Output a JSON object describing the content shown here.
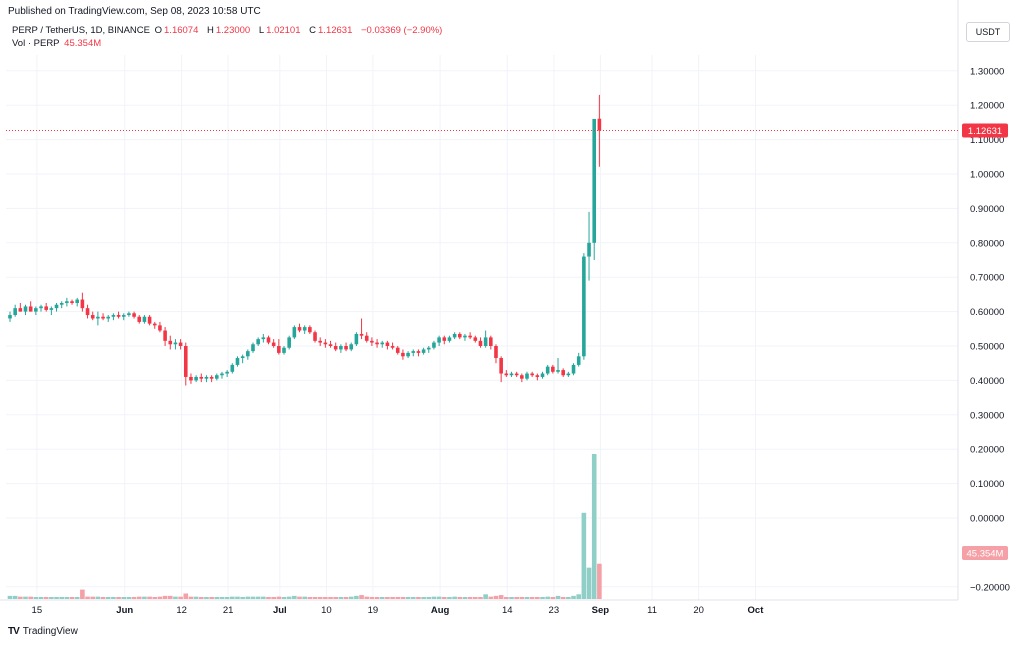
{
  "header": {
    "published": "Published on TradingView.com, Sep 08, 2023 10:58 UTC"
  },
  "legend": {
    "symbol": "PERP / TetherUS, 1D, BINANCE",
    "open_label": "O",
    "open": "1.16074",
    "high_label": "H",
    "high": "1.23000",
    "low_label": "L",
    "low": "1.02101",
    "close_label": "C",
    "close": "1.12631",
    "change": "−0.03369 (−2.90%)",
    "vol_label": "Vol · PERP",
    "vol_value": "45.354M"
  },
  "currency_button": "USDT",
  "footer": {
    "brand": "TradingView",
    "logo": "TV"
  },
  "colors": {
    "up": "#26a69a",
    "down": "#f23645",
    "vol_up": "#8fcfc7",
    "vol_down": "#f4a0a6",
    "grid": "#f0f3fa",
    "axis_text": "#131722",
    "price_line": "#f23645"
  },
  "chart_data": {
    "type": "candlestick",
    "y_ticks": [
      "1.30000",
      "1.20000",
      "1.10000",
      "1.00000",
      "0.90000",
      "0.80000",
      "0.70000",
      "0.60000",
      "0.50000",
      "0.40000",
      "0.30000",
      "0.20000",
      "0.10000",
      "0.00000",
      "−0.20000"
    ],
    "y_tick_values": [
      1.3,
      1.2,
      1.1,
      1.0,
      0.9,
      0.8,
      0.7,
      0.6,
      0.5,
      0.4,
      0.3,
      0.2,
      0.1,
      0.0,
      -0.2
    ],
    "x_ticks": [
      "15",
      "Jun",
      "12",
      "21",
      "Jul",
      "10",
      "19",
      "Aug",
      "14",
      "23",
      "Sep",
      "11",
      "20",
      "Oct"
    ],
    "x_tick_dates": [
      "2023-05-15",
      "2023-06-01",
      "2023-06-12",
      "2023-06-21",
      "2023-07-01",
      "2023-07-10",
      "2023-07-19",
      "2023-08-01",
      "2023-08-14",
      "2023-08-23",
      "2023-09-01",
      "2023-09-11",
      "2023-09-20",
      "2023-10-01"
    ],
    "start_date": "2023-05-10",
    "last_price_label": "1.12631",
    "last_price": 1.12631,
    "last_volume_label": "45.354M",
    "volume_unit_top": 0.185,
    "candles": [
      [
        0.58,
        0.6,
        0.57,
        0.59,
        0.004
      ],
      [
        0.59,
        0.62,
        0.585,
        0.61,
        0.004
      ],
      [
        0.61,
        0.625,
        0.6,
        0.6,
        0.003
      ],
      [
        0.6,
        0.62,
        0.59,
        0.615,
        0.003
      ],
      [
        0.615,
        0.63,
        0.6,
        0.6,
        0.003
      ],
      [
        0.6,
        0.615,
        0.59,
        0.61,
        0.002
      ],
      [
        0.61,
        0.62,
        0.6,
        0.615,
        0.002
      ],
      [
        0.615,
        0.625,
        0.6,
        0.605,
        0.002
      ],
      [
        0.605,
        0.615,
        0.59,
        0.61,
        0.002
      ],
      [
        0.61,
        0.625,
        0.6,
        0.62,
        0.002
      ],
      [
        0.62,
        0.63,
        0.61,
        0.625,
        0.002
      ],
      [
        0.625,
        0.64,
        0.615,
        0.63,
        0.002
      ],
      [
        0.63,
        0.635,
        0.62,
        0.625,
        0.002
      ],
      [
        0.625,
        0.64,
        0.615,
        0.635,
        0.002
      ],
      [
        0.635,
        0.655,
        0.6,
        0.61,
        0.012
      ],
      [
        0.61,
        0.62,
        0.58,
        0.59,
        0.003
      ],
      [
        0.59,
        0.6,
        0.575,
        0.58,
        0.003
      ],
      [
        0.58,
        0.6,
        0.56,
        0.585,
        0.003
      ],
      [
        0.585,
        0.595,
        0.575,
        0.58,
        0.002
      ],
      [
        0.58,
        0.59,
        0.57,
        0.585,
        0.002
      ],
      [
        0.585,
        0.595,
        0.575,
        0.59,
        0.002
      ],
      [
        0.59,
        0.6,
        0.58,
        0.585,
        0.002
      ],
      [
        0.585,
        0.595,
        0.575,
        0.59,
        0.002
      ],
      [
        0.59,
        0.6,
        0.585,
        0.595,
        0.002
      ],
      [
        0.595,
        0.6,
        0.58,
        0.585,
        0.002
      ],
      [
        0.585,
        0.59,
        0.565,
        0.57,
        0.003
      ],
      [
        0.57,
        0.59,
        0.565,
        0.585,
        0.003
      ],
      [
        0.585,
        0.59,
        0.56,
        0.565,
        0.003
      ],
      [
        0.565,
        0.57,
        0.55,
        0.56,
        0.002
      ],
      [
        0.56,
        0.57,
        0.54,
        0.545,
        0.003
      ],
      [
        0.545,
        0.555,
        0.5,
        0.515,
        0.004
      ],
      [
        0.515,
        0.53,
        0.49,
        0.505,
        0.004
      ],
      [
        0.505,
        0.52,
        0.49,
        0.51,
        0.003
      ],
      [
        0.51,
        0.52,
        0.49,
        0.5,
        0.003
      ],
      [
        0.5,
        0.51,
        0.385,
        0.41,
        0.007
      ],
      [
        0.41,
        0.42,
        0.39,
        0.4,
        0.003
      ],
      [
        0.4,
        0.415,
        0.395,
        0.41,
        0.003
      ],
      [
        0.41,
        0.42,
        0.395,
        0.405,
        0.002
      ],
      [
        0.405,
        0.415,
        0.395,
        0.41,
        0.002
      ],
      [
        0.41,
        0.415,
        0.395,
        0.405,
        0.002
      ],
      [
        0.405,
        0.42,
        0.4,
        0.415,
        0.002
      ],
      [
        0.415,
        0.425,
        0.405,
        0.42,
        0.002
      ],
      [
        0.42,
        0.43,
        0.41,
        0.425,
        0.002
      ],
      [
        0.425,
        0.45,
        0.42,
        0.445,
        0.003
      ],
      [
        0.445,
        0.47,
        0.44,
        0.465,
        0.003
      ],
      [
        0.465,
        0.475,
        0.45,
        0.47,
        0.002
      ],
      [
        0.47,
        0.49,
        0.46,
        0.485,
        0.003
      ],
      [
        0.485,
        0.51,
        0.48,
        0.505,
        0.003
      ],
      [
        0.505,
        0.525,
        0.5,
        0.52,
        0.003
      ],
      [
        0.52,
        0.535,
        0.51,
        0.525,
        0.003
      ],
      [
        0.525,
        0.53,
        0.505,
        0.51,
        0.002
      ],
      [
        0.51,
        0.52,
        0.495,
        0.5,
        0.002
      ],
      [
        0.5,
        0.52,
        0.475,
        0.48,
        0.003
      ],
      [
        0.48,
        0.5,
        0.475,
        0.495,
        0.002
      ],
      [
        0.495,
        0.53,
        0.49,
        0.525,
        0.003
      ],
      [
        0.525,
        0.56,
        0.52,
        0.555,
        0.004
      ],
      [
        0.555,
        0.565,
        0.54,
        0.545,
        0.003
      ],
      [
        0.545,
        0.56,
        0.535,
        0.555,
        0.003
      ],
      [
        0.555,
        0.56,
        0.535,
        0.54,
        0.002
      ],
      [
        0.54,
        0.545,
        0.51,
        0.515,
        0.002
      ],
      [
        0.515,
        0.525,
        0.5,
        0.51,
        0.002
      ],
      [
        0.51,
        0.52,
        0.495,
        0.505,
        0.002
      ],
      [
        0.505,
        0.515,
        0.495,
        0.5,
        0.002
      ],
      [
        0.5,
        0.51,
        0.485,
        0.49,
        0.002
      ],
      [
        0.49,
        0.505,
        0.48,
        0.5,
        0.002
      ],
      [
        0.5,
        0.51,
        0.485,
        0.49,
        0.002
      ],
      [
        0.49,
        0.51,
        0.485,
        0.505,
        0.003
      ],
      [
        0.505,
        0.54,
        0.5,
        0.535,
        0.004
      ],
      [
        0.535,
        0.58,
        0.52,
        0.53,
        0.005
      ],
      [
        0.53,
        0.54,
        0.51,
        0.515,
        0.003
      ],
      [
        0.515,
        0.525,
        0.5,
        0.51,
        0.002
      ],
      [
        0.51,
        0.52,
        0.495,
        0.505,
        0.002
      ],
      [
        0.505,
        0.515,
        0.495,
        0.51,
        0.002
      ],
      [
        0.51,
        0.515,
        0.49,
        0.5,
        0.002
      ],
      [
        0.5,
        0.51,
        0.49,
        0.495,
        0.002
      ],
      [
        0.495,
        0.5,
        0.475,
        0.48,
        0.002
      ],
      [
        0.48,
        0.49,
        0.46,
        0.47,
        0.002
      ],
      [
        0.47,
        0.485,
        0.465,
        0.48,
        0.002
      ],
      [
        0.48,
        0.49,
        0.47,
        0.485,
        0.002
      ],
      [
        0.485,
        0.49,
        0.47,
        0.48,
        0.002
      ],
      [
        0.48,
        0.495,
        0.475,
        0.49,
        0.002
      ],
      [
        0.49,
        0.5,
        0.48,
        0.495,
        0.002
      ],
      [
        0.495,
        0.515,
        0.49,
        0.51,
        0.003
      ],
      [
        0.51,
        0.53,
        0.5,
        0.525,
        0.003
      ],
      [
        0.525,
        0.53,
        0.505,
        0.515,
        0.002
      ],
      [
        0.515,
        0.53,
        0.51,
        0.525,
        0.002
      ],
      [
        0.525,
        0.54,
        0.52,
        0.535,
        0.003
      ],
      [
        0.535,
        0.54,
        0.52,
        0.525,
        0.002
      ],
      [
        0.525,
        0.535,
        0.515,
        0.53,
        0.002
      ],
      [
        0.53,
        0.54,
        0.52,
        0.525,
        0.002
      ],
      [
        0.525,
        0.53,
        0.51,
        0.515,
        0.002
      ],
      [
        0.515,
        0.525,
        0.495,
        0.5,
        0.002
      ],
      [
        0.5,
        0.545,
        0.495,
        0.525,
        0.006
      ],
      [
        0.525,
        0.53,
        0.49,
        0.5,
        0.003
      ],
      [
        0.5,
        0.505,
        0.45,
        0.465,
        0.004
      ],
      [
        0.465,
        0.47,
        0.395,
        0.42,
        0.005
      ],
      [
        0.42,
        0.43,
        0.41,
        0.415,
        0.002
      ],
      [
        0.415,
        0.425,
        0.41,
        0.42,
        0.002
      ],
      [
        0.42,
        0.425,
        0.41,
        0.415,
        0.002
      ],
      [
        0.415,
        0.42,
        0.395,
        0.405,
        0.002
      ],
      [
        0.405,
        0.425,
        0.4,
        0.42,
        0.002
      ],
      [
        0.42,
        0.425,
        0.41,
        0.415,
        0.002
      ],
      [
        0.415,
        0.42,
        0.4,
        0.41,
        0.002
      ],
      [
        0.41,
        0.425,
        0.405,
        0.42,
        0.002
      ],
      [
        0.42,
        0.445,
        0.415,
        0.44,
        0.003
      ],
      [
        0.44,
        0.445,
        0.42,
        0.425,
        0.002
      ],
      [
        0.425,
        0.465,
        0.42,
        0.43,
        0.004
      ],
      [
        0.43,
        0.435,
        0.41,
        0.415,
        0.002
      ],
      [
        0.415,
        0.425,
        0.41,
        0.42,
        0.002
      ],
      [
        0.42,
        0.45,
        0.415,
        0.445,
        0.004
      ],
      [
        0.445,
        0.48,
        0.44,
        0.47,
        0.006
      ],
      [
        0.47,
        0.77,
        0.46,
        0.76,
        0.11
      ],
      [
        0.76,
        0.89,
        0.69,
        0.8,
        0.04
      ],
      [
        0.8,
        1.16,
        0.75,
        1.16,
        0.185
      ],
      [
        1.16074,
        1.23,
        1.02101,
        1.12631,
        0.045
      ]
    ]
  }
}
